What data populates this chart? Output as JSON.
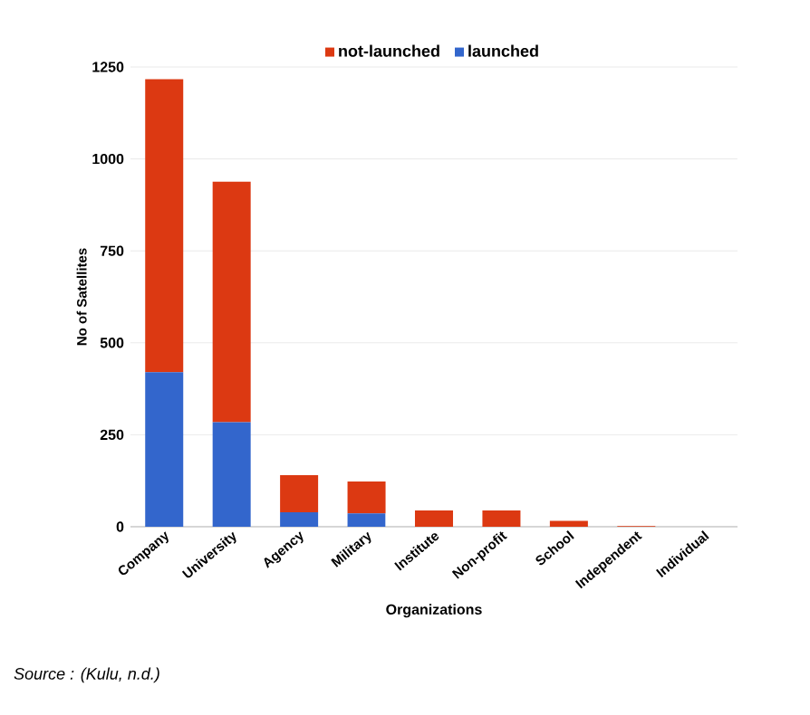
{
  "chart_data": {
    "type": "bar",
    "stacked": true,
    "xlabel": "Organizations",
    "ylabel": "No of Satellites",
    "categories": [
      "Company",
      "University",
      "Agency",
      "Military",
      "Institute",
      "Non-profit",
      "School",
      "Independent",
      "Individual"
    ],
    "series": [
      {
        "name": "launched",
        "color": "#3366cc",
        "values": [
          420,
          284,
          39,
          36,
          0,
          0,
          0,
          0,
          0
        ]
      },
      {
        "name": "not-launched",
        "color": "#dc3912",
        "values": [
          797,
          654,
          101,
          87,
          44,
          44,
          16,
          2,
          0
        ]
      }
    ],
    "ylim": [
      0,
      1250
    ],
    "yticks": [
      0,
      250,
      500,
      750,
      1000,
      1250
    ],
    "grid": "y",
    "legend": "top",
    "annotations": [
      "Source : (Kulu, n.d.)"
    ]
  }
}
